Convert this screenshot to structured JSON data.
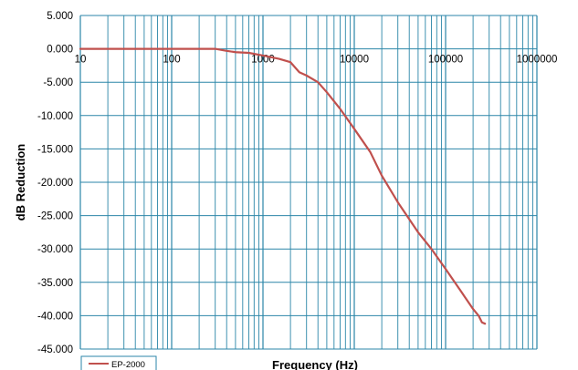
{
  "chart_data": {
    "type": "line",
    "title": "",
    "xlabel": "Frequency (Hz)",
    "ylabel": "dB Reduction",
    "x_scale": "log",
    "xlim": [
      10,
      1000000
    ],
    "ylim": [
      -45,
      5
    ],
    "grid": true,
    "legend_position": "bottom-left",
    "x_tick_labels": [
      "10",
      "100",
      "1000",
      "10000",
      "100000",
      "1000000"
    ],
    "y_tick_labels": [
      "5.000",
      "0.000",
      "-5.000",
      "-10.000",
      "-15.000",
      "-20.000",
      "-25.000",
      "-30.000",
      "-35.000",
      "-40.000",
      "-45.000"
    ],
    "colors": {
      "grid": "#2b86a8",
      "series": "#c0504d",
      "background": "#ffffff"
    },
    "series": [
      {
        "name": "EP-2000",
        "x": [
          10,
          50,
          100,
          200,
          300,
          400,
          500,
          700,
          1000,
          1500,
          2000,
          2500,
          3000,
          4000,
          5000,
          7000,
          10000,
          15000,
          20000,
          30000,
          50000,
          70000,
          100000,
          150000,
          200000,
          230000,
          250000,
          270000
        ],
        "y": [
          0,
          0,
          0,
          0,
          0,
          -0.3,
          -0.5,
          -0.6,
          -1.0,
          -1.5,
          -2.0,
          -3.5,
          -4.0,
          -5.0,
          -6.5,
          -9.0,
          -12.0,
          -15.5,
          -19.0,
          -23.0,
          -27.5,
          -30.0,
          -33.0,
          -36.5,
          -39.0,
          -40.0,
          -41.0,
          -41.2
        ]
      }
    ]
  }
}
